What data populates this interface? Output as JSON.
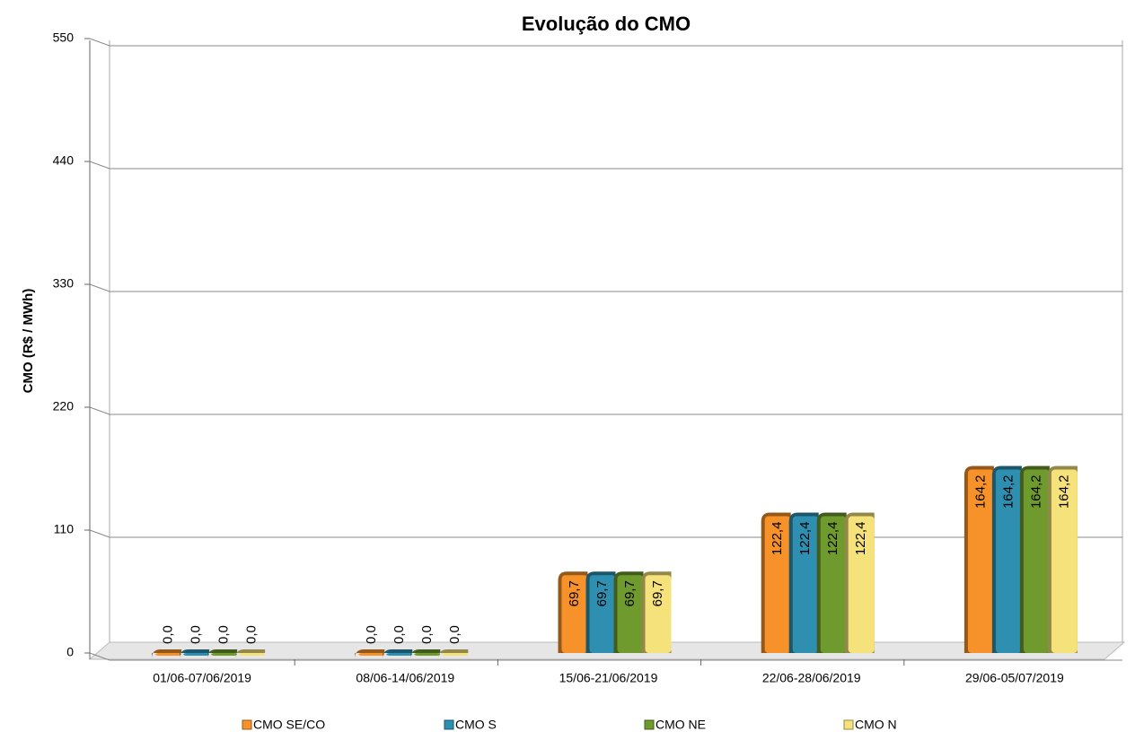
{
  "chart_data": {
    "type": "bar",
    "title": "Evolução do CMO",
    "y_label": "CMO (R$ / MWh)",
    "categories": [
      "01/06-07/06/2019",
      "08/06-14/06/2019",
      "15/06-21/06/2019",
      "22/06-28/06/2019",
      "29/06-05/07/2019"
    ],
    "series": [
      {
        "name": "CMO SE/CO",
        "color": "#f7922a",
        "values": [
          0,
          0,
          69.7,
          122.4,
          164.2
        ],
        "value_labels": [
          "0,0",
          "0,0",
          "69,7",
          "122,4",
          "164,2"
        ]
      },
      {
        "name": "CMO S",
        "color": "#2e8fb0",
        "values": [
          0,
          0,
          69.7,
          122.4,
          164.2
        ],
        "value_labels": [
          "0,0",
          "0,0",
          "69,7",
          "122,4",
          "164,2"
        ]
      },
      {
        "name": "CMO NE",
        "color": "#6f9a2e",
        "values": [
          0,
          0,
          69.7,
          122.4,
          164.2
        ],
        "value_labels": [
          "0,0",
          "0,0",
          "69,7",
          "122,4",
          "164,2"
        ]
      },
      {
        "name": "CMO N",
        "color": "#f5e27a",
        "values": [
          0,
          0,
          69.7,
          122.4,
          164.2
        ],
        "value_labels": [
          "0,0",
          "0,0",
          "69,7",
          "122,4",
          "164,2"
        ]
      }
    ],
    "ylim": [
      0,
      550
    ],
    "yticks": [
      0,
      110,
      220,
      330,
      440,
      550
    ],
    "grid": true
  }
}
